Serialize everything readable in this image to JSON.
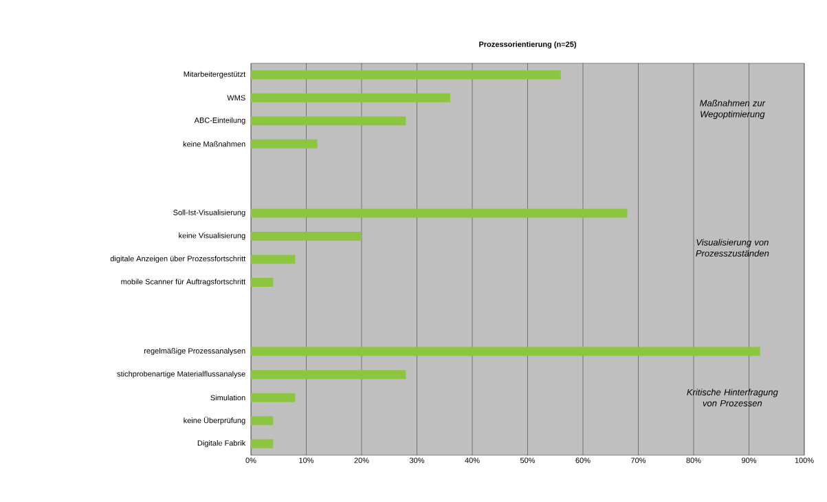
{
  "chart_data": {
    "type": "bar",
    "orientation": "horizontal",
    "title": "Prozessorientierung (n=25)",
    "categories": [
      "Mitarbeitergestützt",
      "WMS",
      "ABC-Einteilung",
      "keine Maßnahmen",
      null,
      null,
      "Soll-Ist-Visualisierung",
      "keine Visualisierung",
      "digitale Anzeigen über Prozessfortschritt",
      "mobile Scanner für Auftragsfortschritt",
      null,
      null,
      "regelmäßige Prozessanalysen",
      "stichprobenartige Materialflussanalyse",
      "Simulation",
      "keine Überprüfung",
      "Digitale Fabrik"
    ],
    "values": [
      56,
      36,
      28,
      12,
      null,
      null,
      68,
      20,
      8,
      4,
      null,
      null,
      92,
      28,
      8,
      4,
      4
    ],
    "color": "#8cc63e",
    "xlim": [
      0,
      100
    ],
    "xticks": [
      {
        "value": 0,
        "label": "0%"
      },
      {
        "value": 10,
        "label": "10%"
      },
      {
        "value": 20,
        "label": "20%"
      },
      {
        "value": 30,
        "label": "30%"
      },
      {
        "value": 40,
        "label": "40%"
      },
      {
        "value": 50,
        "label": "50%"
      },
      {
        "value": 60,
        "label": "60%"
      },
      {
        "value": 70,
        "label": "70%"
      },
      {
        "value": 80,
        "label": "80%"
      },
      {
        "value": 90,
        "label": "90%"
      },
      {
        "value": 100,
        "label": "100%"
      }
    ],
    "grid": "x",
    "annotations": [
      "Maßnahmen zur Wegoptimierung",
      "Visualisierung von Prozesszuständen",
      "Kritische Hinterfragung von Prozessen"
    ]
  }
}
